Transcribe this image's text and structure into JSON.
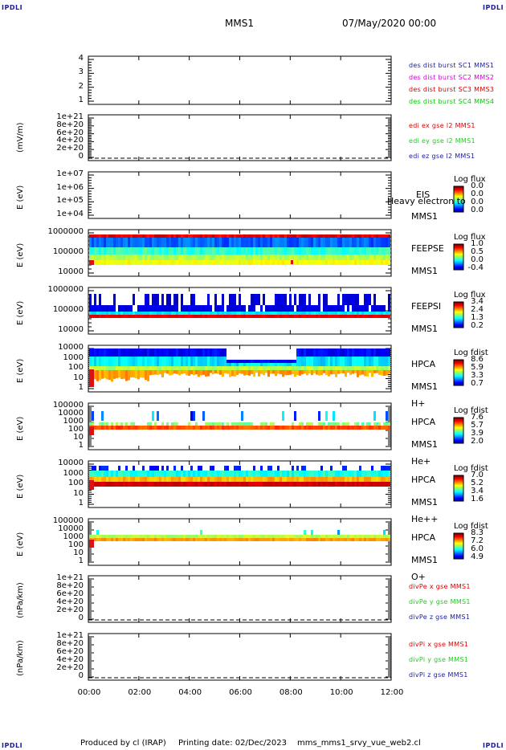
{
  "header": {
    "corner_left_top": "IPDLI",
    "corner_right_top": "IPDLI",
    "corner_left_bottom": "IPDLI",
    "corner_right_bottom": "IPDLI",
    "spacecraft": "MMS1",
    "datetime": "07/May/2020 00:00"
  },
  "footer": {
    "produced": "Produced by cl (IRAP)",
    "printing": "Printing date: 02/Dec/2023",
    "script": "mms_mms1_srvy_vue_web2.cl"
  },
  "colors": {
    "mms1": "#1a1aa0",
    "mms2": "#d400d4",
    "mms3": "#d40000",
    "mms4": "#00cc00",
    "red": "#dd0000",
    "green": "#22cc22",
    "blue": "#1a1aa0"
  },
  "chart_data": [
    {
      "type": "line",
      "panel": 1,
      "yticks": [
        "4",
        "3",
        "2",
        "1"
      ],
      "ylim": [
        0.5,
        4.5
      ],
      "legend": [
        {
          "text": "des dist burst SC1 MMS1",
          "color": "#1a1aa0"
        },
        {
          "text": "des dist burst SC2 MMS2",
          "color": "#d400d4"
        },
        {
          "text": "des dist burst SC3 MMS3",
          "color": "#d40000"
        },
        {
          "text": "des dist burst SC4 MMS4",
          "color": "#00cc00"
        }
      ]
    },
    {
      "type": "line",
      "panel": 2,
      "ylabel": "(mV/m)",
      "yticks": [
        "1e+21",
        "8e+20",
        "6e+20",
        "4e+20",
        "2e+20",
        "0"
      ],
      "legend": [
        {
          "text": "edi ex gse l2 MMS1",
          "color": "#dd0000"
        },
        {
          "text": "edi ey gse l2 MMS1",
          "color": "#22cc22"
        },
        {
          "text": "edi ez gse l2 MMS1",
          "color": "#1a1aa0"
        }
      ]
    },
    {
      "type": "heatmap",
      "panel": 3,
      "ylabel": "E (eV)",
      "yticks": [
        "1e+07",
        "1e+06",
        "1e+05",
        "1e+04"
      ],
      "side_labels": [
        "EIS",
        "Heavy electron to",
        "MMS1"
      ],
      "colorbar_title": "Log flux",
      "colorbar_values": [
        "0.0",
        "0.0",
        "0.0",
        "0.0"
      ]
    },
    {
      "type": "heatmap",
      "panel": 4,
      "ylabel": "E (eV)",
      "yticks": [
        "1000000",
        "100000",
        "10000"
      ],
      "side_labels": [
        "FEEPSE",
        "MMS1"
      ],
      "colorbar_title": "Log flux",
      "colorbar_values": [
        "1.0",
        "0.5",
        "0.0",
        "-0.4"
      ]
    },
    {
      "type": "heatmap",
      "panel": 5,
      "ylabel": "E (eV)",
      "yticks": [
        "1000000",
        "100000",
        "10000"
      ],
      "side_labels": [
        "FEEPSI",
        "MMS1"
      ],
      "colorbar_title": "Log flux",
      "colorbar_values": [
        "3.4",
        "2.4",
        "1.3",
        "0.2"
      ]
    },
    {
      "type": "heatmap",
      "panel": 6,
      "ylabel": "E (eV)",
      "yticks": [
        "10000",
        "1000",
        "100",
        "10",
        "1"
      ],
      "side_labels": [
        "HPCA",
        "MMS1",
        "H+"
      ],
      "colorbar_title": "Log fdist",
      "colorbar_values": [
        "8.6",
        "5.9",
        "3.3",
        "0.7"
      ]
    },
    {
      "type": "heatmap",
      "panel": 7,
      "ylabel": "E (eV)",
      "yticks": [
        "100000",
        "10000",
        "1000",
        "100",
        "10",
        "1"
      ],
      "side_labels": [
        "HPCA",
        "MMS1",
        "He+"
      ],
      "colorbar_title": "Log fdist",
      "colorbar_values": [
        "7.6",
        "5.7",
        "3.9",
        "2.0"
      ]
    },
    {
      "type": "heatmap",
      "panel": 8,
      "ylabel": "E (eV)",
      "yticks": [
        "10000",
        "1000",
        "100",
        "10",
        "1"
      ],
      "side_labels": [
        "HPCA",
        "MMS1",
        "He++"
      ],
      "colorbar_title": "Log fdist",
      "colorbar_values": [
        "7.0",
        "5.2",
        "3.4",
        "1.6"
      ]
    },
    {
      "type": "heatmap",
      "panel": 9,
      "ylabel": "E (eV)",
      "yticks": [
        "100000",
        "10000",
        "1000",
        "100",
        "10",
        "1"
      ],
      "side_labels": [
        "HPCA",
        "MMS1",
        "O+"
      ],
      "colorbar_title": "Log fdist",
      "colorbar_values": [
        "8.3",
        "7.2",
        "6.0",
        "4.9"
      ]
    },
    {
      "type": "line",
      "panel": 10,
      "ylabel": "(nPa/km)",
      "yticks": [
        "1e+21",
        "8e+20",
        "6e+20",
        "4e+20",
        "2e+20",
        "0"
      ],
      "legend": [
        {
          "text": "divPe x gse MMS1",
          "color": "#dd0000"
        },
        {
          "text": "divPe y gse MMS1",
          "color": "#22cc22"
        },
        {
          "text": "divPe z gse MMS1",
          "color": "#1a1aa0"
        }
      ]
    },
    {
      "type": "line",
      "panel": 11,
      "ylabel": "(nPa/km)",
      "yticks": [
        "1e+21",
        "8e+20",
        "6e+20",
        "4e+20",
        "2e+20",
        "0"
      ],
      "legend": [
        {
          "text": "divPi x gse MMS1",
          "color": "#dd0000"
        },
        {
          "text": "divPi y gse MMS1",
          "color": "#22cc22"
        },
        {
          "text": "divPi z gse MMS1",
          "color": "#1a1aa0"
        }
      ]
    }
  ],
  "xticks": [
    "00:00",
    "02:00",
    "04:00",
    "06:00",
    "08:00",
    "10:00",
    "12:00"
  ]
}
